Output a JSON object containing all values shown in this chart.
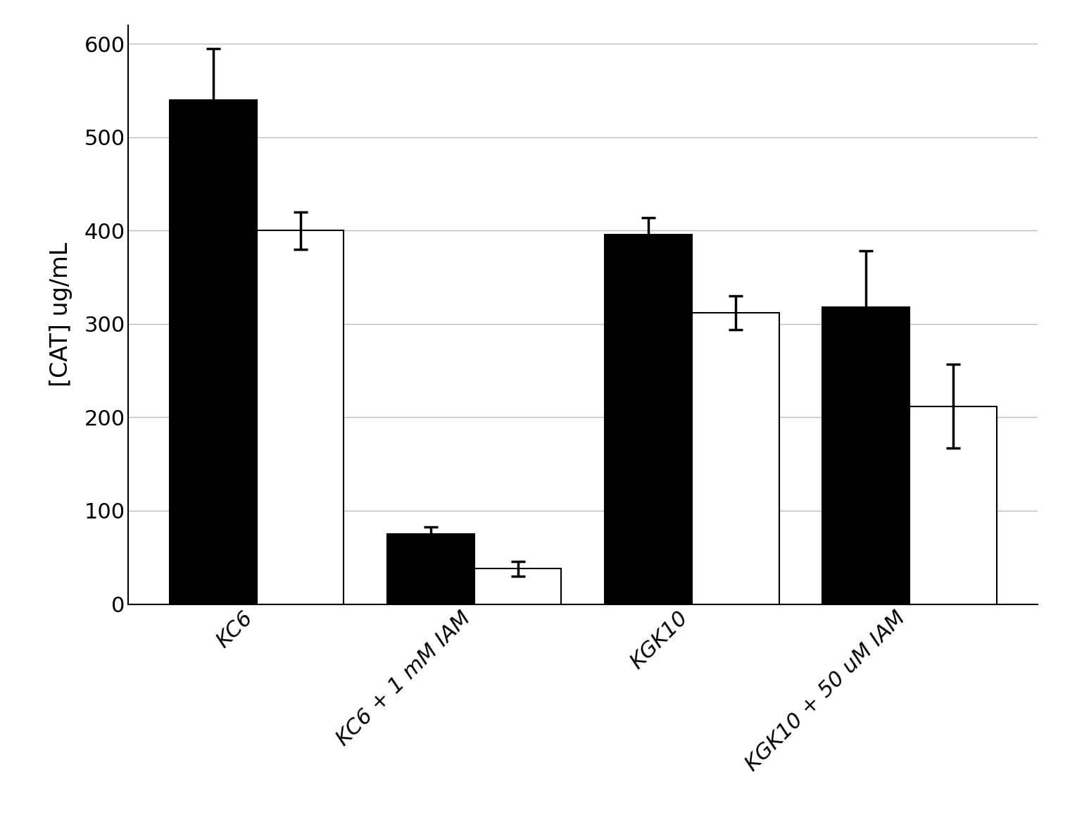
{
  "categories": [
    "KC6",
    "KC6 + 1 mM IAM",
    "KGK10",
    "KGK10 + 50 uM IAM"
  ],
  "black_values": [
    540,
    75,
    396,
    318
  ],
  "white_values": [
    400,
    38,
    312,
    212
  ],
  "black_errors": [
    55,
    8,
    18,
    60
  ],
  "white_errors": [
    20,
    8,
    18,
    45
  ],
  "ylabel": "[CAT] ug/mL",
  "ylim": [
    0,
    620
  ],
  "yticks": [
    0,
    100,
    200,
    300,
    400,
    500,
    600
  ],
  "bar_width": 0.4,
  "black_color": "#000000",
  "white_color": "#ffffff",
  "white_edgecolor": "#000000",
  "background_color": "#ffffff",
  "grid_color": "#bbbbbb",
  "ylabel_fontsize": 24,
  "tick_fontsize": 22,
  "xtick_fontsize": 22,
  "error_capsize": 7,
  "error_linewidth": 2.5
}
